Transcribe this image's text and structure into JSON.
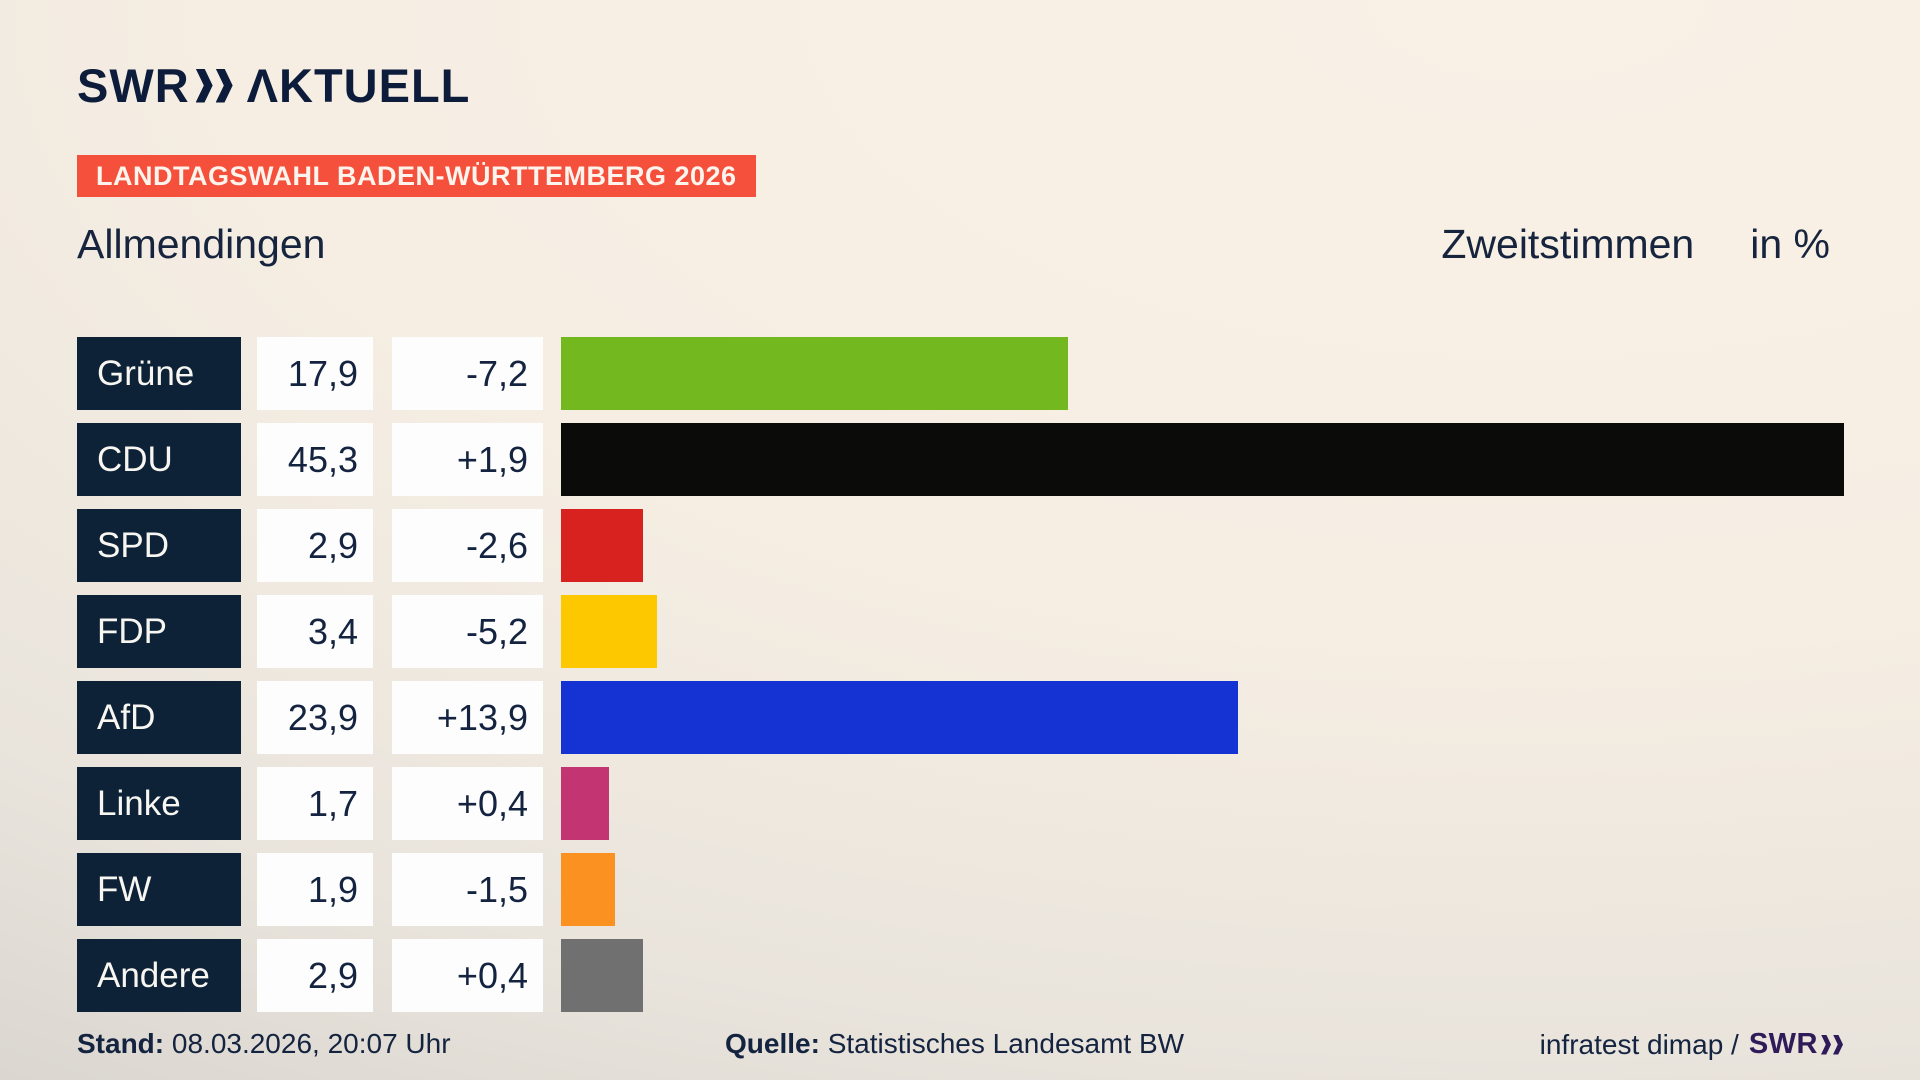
{
  "header": {
    "logo": {
      "swr": "SWR",
      "chevrons": "»",
      "aktuell": "ΛKTUELL"
    },
    "banner": "LANDTAGSWAHL BADEN-WÜRTTEMBERG 2026"
  },
  "subheader": {
    "municipality": "Allmendingen",
    "vote_type": "Zweitstimmen",
    "unit": "in %"
  },
  "chart_data": {
    "type": "bar",
    "orientation": "horizontal",
    "title": "Allmendingen — Zweitstimmen in %",
    "unit": "percent",
    "max_value": 45.3,
    "xlim": [
      0,
      45.3
    ],
    "categories": [
      "Grüne",
      "CDU",
      "SPD",
      "FDP",
      "AfD",
      "Linke",
      "FW",
      "Andere"
    ],
    "values": [
      17.9,
      45.3,
      2.9,
      3.4,
      23.9,
      1.7,
      1.9,
      2.9
    ],
    "changes": [
      -7.2,
      1.9,
      -2.6,
      -5.2,
      13.9,
      0.4,
      -1.5,
      0.4
    ],
    "rows": [
      {
        "party": "Grüne",
        "value": "17,9",
        "change": "-7,2",
        "numeric": 17.9,
        "color": "#74b820"
      },
      {
        "party": "CDU",
        "value": "45,3",
        "change": "+1,9",
        "numeric": 45.3,
        "color": "#0b0b09"
      },
      {
        "party": "SPD",
        "value": "2,9",
        "change": "-2,6",
        "numeric": 2.9,
        "color": "#d7221f"
      },
      {
        "party": "FDP",
        "value": "3,4",
        "change": "-5,2",
        "numeric": 3.4,
        "color": "#fdc800"
      },
      {
        "party": "AfD",
        "value": "23,9",
        "change": "+13,9",
        "numeric": 23.9,
        "color": "#1533d2"
      },
      {
        "party": "Linke",
        "value": "1,7",
        "change": "+0,4",
        "numeric": 1.7,
        "color": "#c23572"
      },
      {
        "party": "FW",
        "value": "1,9",
        "change": "-1,5",
        "numeric": 1.9,
        "color": "#fb9120"
      },
      {
        "party": "Andere",
        "value": "2,9",
        "change": "+0,4",
        "numeric": 2.9,
        "color": "#707070"
      }
    ]
  },
  "footer": {
    "stand_label": "Stand:",
    "stand_value": "08.03.2026, 20:07 Uhr",
    "quelle_label": "Quelle:",
    "quelle_value": "Statistisches Landesamt BW",
    "credit_text": "infratest dimap /",
    "credit_logo": "SWR"
  },
  "colors": {
    "background_top": "#f8f0e5",
    "background_bottom": "#d6d2cc",
    "navy_box": "#0d2137",
    "text_navy": "#14233f",
    "banner_red": "#f4503c",
    "logo_navy": "#0c1c3a",
    "credit_purple": "#2e1b57",
    "value_box": "#fdfdfd"
  }
}
